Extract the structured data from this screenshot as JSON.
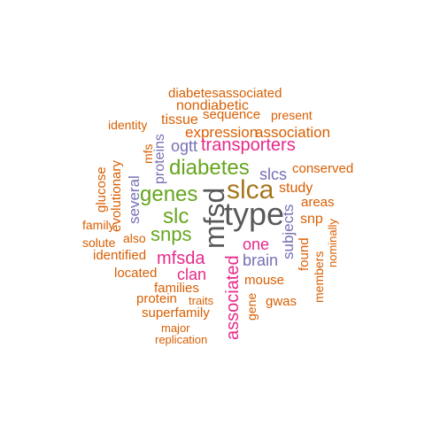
{
  "colors": {
    "orange": "#d95f02",
    "green": "#66a61e",
    "purple": "#7570b3",
    "magenta": "#e7298a",
    "gray": "#595959",
    "brown": "#a6761d"
  },
  "words": {
    "type": "type",
    "mfsd": "mfsd",
    "slca": "slca",
    "diabetes": "diabetes",
    "genes": "genes",
    "transporters": "transporters",
    "snps": "snps",
    "slc": "slc",
    "mfsda": "mfsda",
    "clan": "clan",
    "associated": "associated",
    "one": "one",
    "brain": "brain",
    "expression": "expression",
    "association": "association",
    "sequence": "sequence",
    "present": "present",
    "nondiabetic": "nondiabetic",
    "diabetesassociated": "diabetesassociated",
    "tissue": "tissue",
    "identity": "identity",
    "mfs": "mfs",
    "proteins": "proteins",
    "ogtt": "ogtt",
    "slcs": "slcs",
    "conserved": "conserved",
    "study": "study",
    "areas": "areas",
    "snp": "snp",
    "glucose": "glucose",
    "evolutionary": "evolutionary",
    "several": "several",
    "family": "family",
    "solute": "solute",
    "also": "also",
    "identified": "identified",
    "located": "located",
    "families": "families",
    "protein": "protein",
    "superfamily": "superfamily",
    "major": "major",
    "replication": "replication",
    "traits": "traits",
    "gene": "gene",
    "mouse": "mouse",
    "gwas": "gwas",
    "subjects": "subjects",
    "found": "found",
    "nominally": "nominally",
    "members": "members"
  }
}
